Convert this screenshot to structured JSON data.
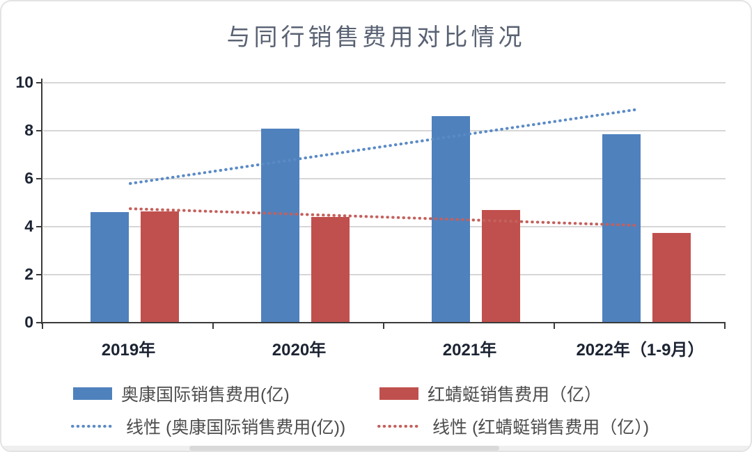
{
  "chart_data": {
    "type": "bar",
    "title": "与同行销售费用对比情况",
    "categories": [
      "2019年",
      "2020年",
      "2021年",
      "2022年（1-9月）"
    ],
    "series": [
      {
        "name": "奥康国际销售费用(亿)",
        "color": "#4f81bd",
        "values": [
          4.6,
          8.1,
          8.6,
          7.85
        ]
      },
      {
        "name": "红蜻蜓销售费用（亿）",
        "color": "#c0504d",
        "values": [
          4.65,
          4.4,
          4.7,
          3.75
        ]
      }
    ],
    "trendlines": [
      {
        "name": "线性 (奥康国际销售费用(亿))",
        "color": "#5a8ac6",
        "start": 5.8,
        "end": 8.9
      },
      {
        "name": "线性 (红蜻蜓销售费用（亿）)",
        "color": "#c4605c",
        "start": 4.75,
        "end": 4.05
      }
    ],
    "ylim": [
      0,
      10
    ],
    "yticks": [
      0,
      2,
      4,
      6,
      8,
      10
    ],
    "grid": "horizontal",
    "legend_position": "bottom",
    "colors": {
      "grid": "#d6d6d6",
      "axis": "#3a3a3a",
      "tick_labels": "#1c2433",
      "title": "#596273",
      "legend_text": "#4c4c4c"
    }
  }
}
